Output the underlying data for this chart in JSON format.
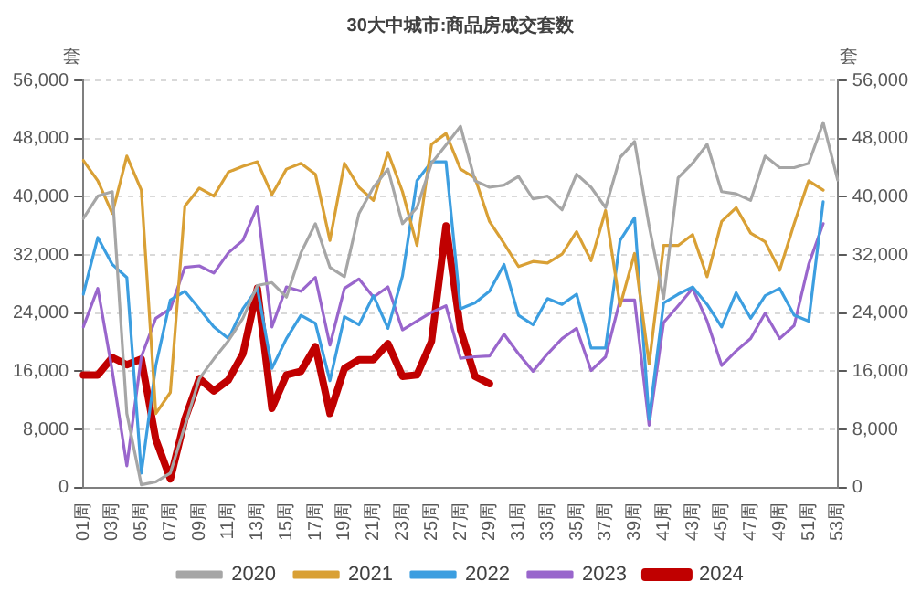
{
  "chart_data": {
    "type": "line",
    "title": "30大中城市:商品房成交套数",
    "ylabel": "套",
    "y2label": "套",
    "categories": [
      "01周",
      null,
      "03周",
      null,
      "05周",
      null,
      "07周",
      null,
      "09周",
      null,
      "11周",
      null,
      "13周",
      null,
      "15周",
      null,
      "17周",
      null,
      "19周",
      null,
      "21周",
      null,
      "23周",
      null,
      "25周",
      null,
      "27周",
      null,
      "29周",
      null,
      "31周",
      null,
      "33周",
      null,
      "35周",
      null,
      "37周",
      null,
      "39周",
      null,
      "41周",
      null,
      "43周",
      null,
      "45周",
      null,
      "47周",
      null,
      "49周",
      null,
      "51周",
      null,
      "53周"
    ],
    "ylim": [
      0,
      56000
    ],
    "yticks": [
      0,
      {
        "value": 8000,
        "label": "8,000"
      },
      {
        "value": 16000,
        "label": "16,000"
      },
      {
        "value": 24000,
        "label": "24,000"
      },
      {
        "value": 32000,
        "label": "32,000"
      },
      {
        "value": 40000,
        "label": "40,000"
      },
      {
        "value": 48000,
        "label": "48,000"
      },
      {
        "value": 56000,
        "label": "56,000"
      }
    ],
    "y2lim": [
      0,
      56000
    ],
    "y2ticks": [
      0,
      {
        "value": 8000,
        "label": "8,000"
      },
      {
        "value": 16000,
        "label": "16,000"
      },
      {
        "value": 24000,
        "label": "24,000"
      },
      {
        "value": 32000,
        "label": "32,000"
      },
      {
        "value": 40000,
        "label": "40,000"
      },
      {
        "value": 48000,
        "label": "48,000"
      },
      {
        "value": 56000,
        "label": "56,000"
      }
    ],
    "grid": "y",
    "legend": "bottom",
    "marker": "none",
    "line_style": "solid",
    "series": [
      {
        "name": "2020",
        "color": "#a6a6a6",
        "values": [
          37000,
          40100,
          40700,
          10200,
          400,
          800,
          2000,
          8500,
          15000,
          17700,
          20200,
          23300,
          27800,
          28200,
          26200,
          32300,
          36300,
          30300,
          29000,
          37700,
          41300,
          43800,
          36300,
          38500,
          44600,
          47100,
          49700,
          42200,
          41300,
          41600,
          42800,
          39700,
          40100,
          38200,
          43100,
          41300,
          38500,
          45400,
          47600,
          36000,
          26000,
          42600,
          44600,
          47200,
          40700,
          40400,
          39500,
          45600,
          44000,
          44000,
          44600,
          50200,
          42300
        ]
      },
      {
        "name": "2021",
        "color": "#d9a035",
        "values": [
          45000,
          42200,
          37700,
          45600,
          40900,
          10200,
          13100,
          38700,
          41200,
          40100,
          43400,
          44200,
          44800,
          40300,
          43800,
          44600,
          43100,
          34000,
          44600,
          41300,
          39500,
          46100,
          40700,
          33300,
          47200,
          48700,
          43800,
          42600,
          36600,
          33600,
          30400,
          31100,
          30900,
          32100,
          35200,
          31200,
          38100,
          25000,
          32200,
          17000,
          33300,
          33300,
          34800,
          29000,
          36600,
          38500,
          35000,
          33800,
          29900,
          36300,
          42200,
          40900,
          null
        ]
      },
      {
        "name": "2022",
        "color": "#3c9ee0",
        "values": [
          26600,
          34400,
          30700,
          28900,
          2000,
          16800,
          25800,
          27000,
          24600,
          22100,
          20500,
          24600,
          27400,
          16400,
          20500,
          23700,
          22600,
          14700,
          23500,
          22400,
          26400,
          21900,
          29100,
          42200,
          44800,
          44800,
          24600,
          25400,
          27000,
          30700,
          23700,
          22400,
          26000,
          25200,
          26600,
          19200,
          19200,
          34000,
          37100,
          9400,
          25400,
          26600,
          27600,
          25200,
          22100,
          26800,
          23300,
          26400,
          27400,
          23700,
          22900,
          39300,
          null
        ]
      },
      {
        "name": "2023",
        "color": "#9966cc",
        "values": [
          22100,
          27400,
          16000,
          3000,
          18000,
          23300,
          24600,
          30300,
          30500,
          29500,
          32300,
          34000,
          38700,
          22100,
          27600,
          27000,
          28900,
          19600,
          27400,
          28700,
          26200,
          27600,
          21700,
          22900,
          24100,
          25000,
          17800,
          18000,
          18100,
          21100,
          18400,
          16000,
          18400,
          20500,
          21900,
          16100,
          18000,
          25800,
          25800,
          8600,
          22700,
          25000,
          27400,
          22900,
          16800,
          18800,
          20500,
          24000,
          20500,
          22300,
          30700,
          36300,
          null
        ]
      },
      {
        "name": "2024",
        "color": "#c00000",
        "values": [
          15500,
          15500,
          17900,
          16900,
          17700,
          6600,
          1200,
          9400,
          15000,
          13300,
          14800,
          18400,
          27400,
          10900,
          15500,
          16000,
          19400,
          10200,
          16400,
          17600,
          17600,
          19800,
          15300,
          15500,
          20100,
          36000,
          21700,
          15300,
          14300,
          null,
          null,
          null,
          null,
          null,
          null,
          null,
          null,
          null,
          null,
          null,
          null,
          null,
          null,
          null,
          null,
          null,
          null,
          null,
          null,
          null,
          null,
          null,
          null
        ]
      }
    ]
  }
}
